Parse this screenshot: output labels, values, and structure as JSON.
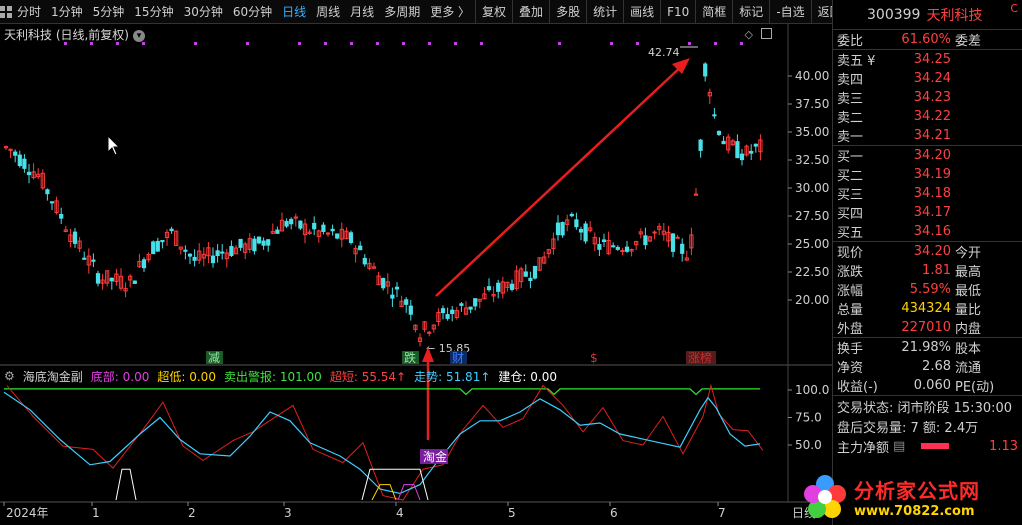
{
  "toolbar": {
    "periods": [
      "分时",
      "1分钟",
      "5分钟",
      "15分钟",
      "30分钟",
      "60分钟",
      "日线",
      "周线",
      "月线",
      "多周期",
      "更多 〉"
    ],
    "active_period": "日线",
    "actions": [
      "复权",
      "叠加",
      "多股",
      "统计",
      "画线",
      "F10",
      "简框",
      "标记",
      "-自选",
      "返回"
    ]
  },
  "chart": {
    "title": "天利科技 (日线,前复权)",
    "price_ticks": [
      "40.00",
      "37.50",
      "35.00",
      "32.50",
      "30.00",
      "27.50",
      "25.00",
      "22.50",
      "20.00"
    ],
    "high_label": "42.74",
    "low_label": "15.85",
    "event_marks": [
      {
        "text": "减",
        "color": "#2fa84f"
      },
      {
        "text": "跌",
        "color": "#2fa84f"
      },
      {
        "text": "财",
        "color": "#3a7bff"
      },
      {
        "text": "$",
        "color": "#e03030"
      },
      {
        "text": "涨榜",
        "color": "#c03030"
      }
    ],
    "annotation": "淘金",
    "x_labels": [
      "2024年",
      "1",
      "2",
      "3",
      "4",
      "5",
      "6",
      "7"
    ],
    "x_end_label": "日线"
  },
  "indicator": {
    "name": "海底淘金副",
    "items": [
      {
        "label": "底部:",
        "value": "0.00",
        "color": "#e040e0"
      },
      {
        "label": "超低:",
        "value": "0.00",
        "color": "#ffd400"
      },
      {
        "label": "卖出警报:",
        "value": "101.00",
        "color": "#40e040"
      },
      {
        "label": "超短:",
        "value": "55.54↑",
        "color": "#ff4040"
      },
      {
        "label": "走势:",
        "value": "51.81↑",
        "color": "#3ad0ff"
      },
      {
        "label": "建仓:",
        "value": "0.00",
        "color": "#ffffff"
      }
    ],
    "y_ticks": [
      "100.0",
      "75.0",
      "50.0"
    ]
  },
  "quote": {
    "code": "300399",
    "name": "天利科技",
    "corner": "C",
    "weibi": {
      "label": "委比",
      "value": "61.60%",
      "label2": "委差"
    },
    "asks": [
      {
        "label": "卖五 ¥",
        "price": "34.25"
      },
      {
        "label": "卖四",
        "price": "34.24"
      },
      {
        "label": "卖三",
        "price": "34.23"
      },
      {
        "label": "卖二",
        "price": "34.22"
      },
      {
        "label": "卖一",
        "price": "34.21"
      }
    ],
    "bids": [
      {
        "label": "买一",
        "price": "34.20"
      },
      {
        "label": "买二",
        "price": "34.19"
      },
      {
        "label": "买三",
        "price": "34.18"
      },
      {
        "label": "买四",
        "price": "34.17"
      },
      {
        "label": "买五",
        "price": "34.16"
      }
    ],
    "stats": [
      {
        "label": "现价",
        "value": "34.20",
        "label2": "今开",
        "color": "#ff4040"
      },
      {
        "label": "涨跌",
        "value": "1.81",
        "label2": "最高",
        "color": "#ff4040"
      },
      {
        "label": "涨幅",
        "value": "5.59%",
        "label2": "最低",
        "color": "#ff4040"
      },
      {
        "label": "总量",
        "value": "434324",
        "label2": "量比",
        "color": "#ffd400"
      },
      {
        "label": "外盘",
        "value": "227010",
        "label2": "内盘",
        "color": "#ff4040"
      }
    ],
    "stats2": [
      {
        "label": "换手",
        "value": "21.98%",
        "label2": "股本",
        "color": "#d0d0d0"
      },
      {
        "label": "净资",
        "value": "2.68",
        "label2": "流通",
        "color": "#d0d0d0"
      },
      {
        "label": "收益(-)",
        "value": "0.060",
        "label2": "PE(动)",
        "color": "#d0d0d0"
      }
    ],
    "trade_status": "交易状态: 闭市阶段 15:30:00",
    "after_hours": "盘后交易量: 7  额: 2.4万",
    "main_net_label": "主力净额",
    "main_net_value": "1.13"
  },
  "logo": {
    "title": "分析家公式网",
    "url": "www.70822.com"
  }
}
